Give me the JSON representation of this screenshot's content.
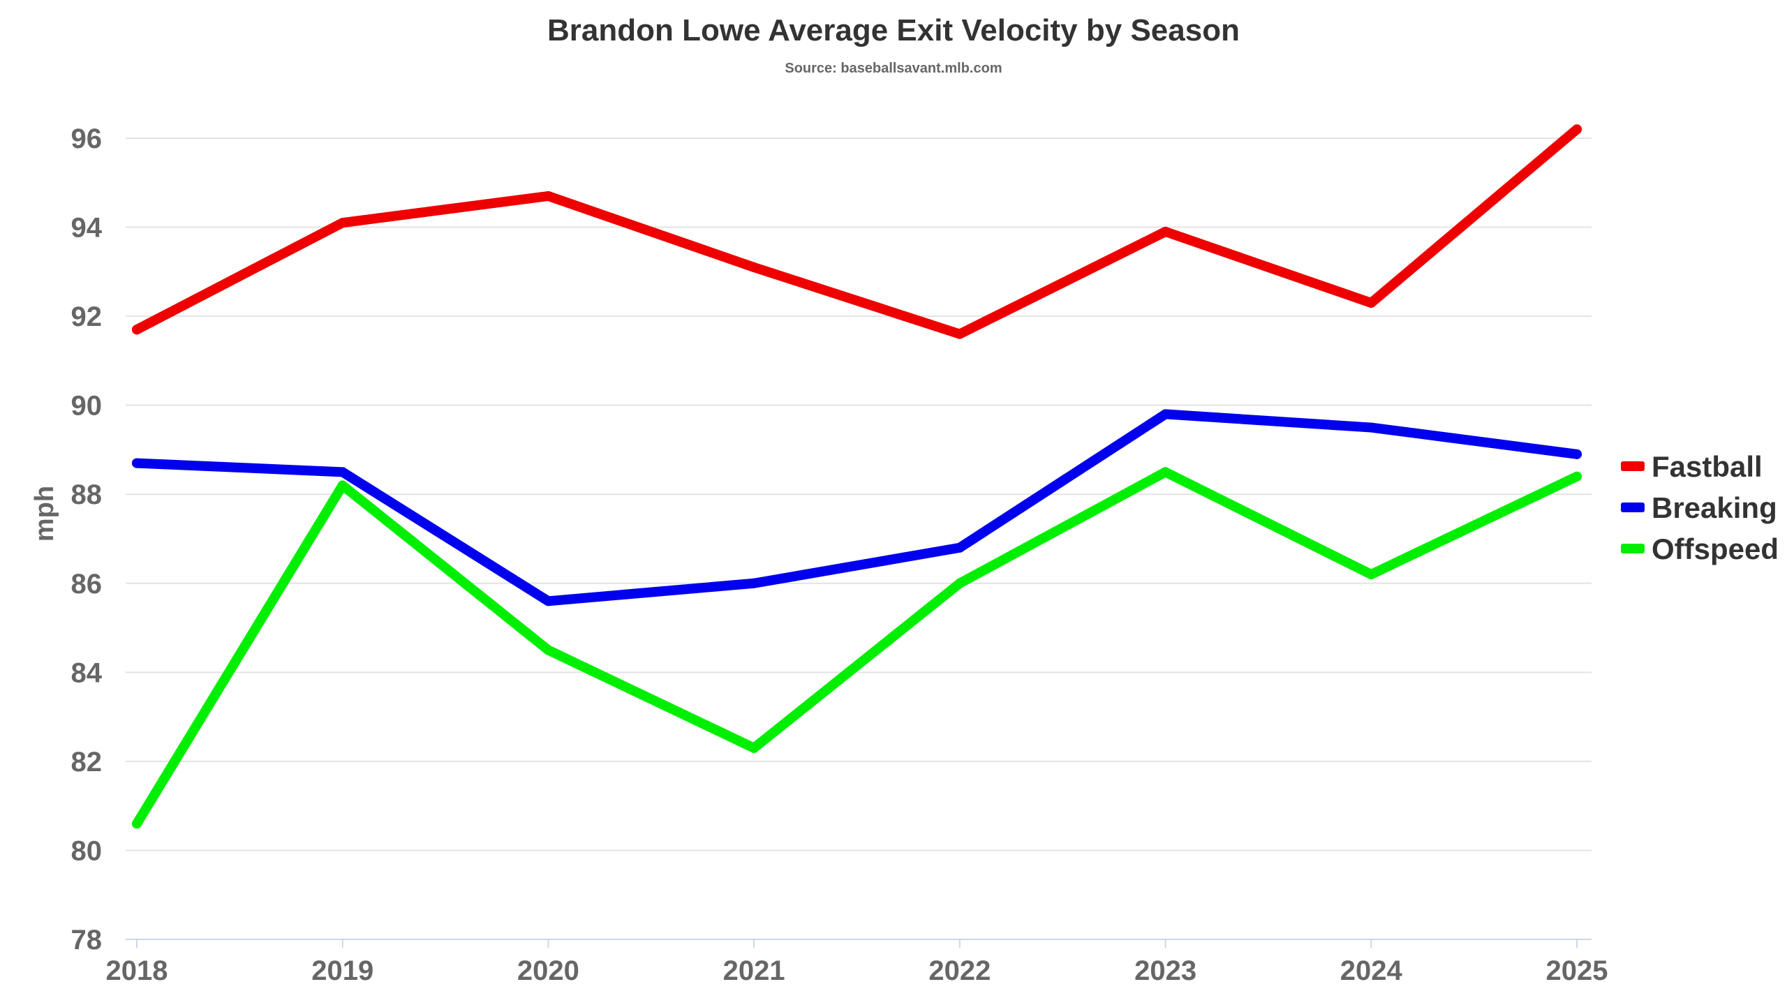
{
  "chart_data": {
    "type": "line",
    "title": "Brandon Lowe Average Exit Velocity by Season",
    "subtitle": "Source: baseballsavant.mlb.com",
    "xlabel": "",
    "ylabel": "mph",
    "categories": [
      "2018",
      "2019",
      "2020",
      "2021",
      "2022",
      "2023",
      "2024",
      "2025"
    ],
    "ylim": [
      78,
      96
    ],
    "yticks": [
      "78",
      "80",
      "82",
      "84",
      "86",
      "88",
      "90",
      "92",
      "94",
      "96"
    ],
    "grid": true,
    "legend_position": "right",
    "series": [
      {
        "name": "Fastball",
        "color": "#ee0000",
        "values": [
          91.7,
          94.1,
          94.7,
          93.1,
          91.6,
          93.9,
          92.3,
          96.2
        ]
      },
      {
        "name": "Breaking",
        "color": "#0000ee",
        "values": [
          88.7,
          88.5,
          85.6,
          86.0,
          86.8,
          89.8,
          89.5,
          88.9
        ]
      },
      {
        "name": "Offspeed",
        "color": "#00ee00",
        "values": [
          80.6,
          88.2,
          84.5,
          82.3,
          86.0,
          88.5,
          86.2,
          88.4
        ]
      }
    ]
  }
}
